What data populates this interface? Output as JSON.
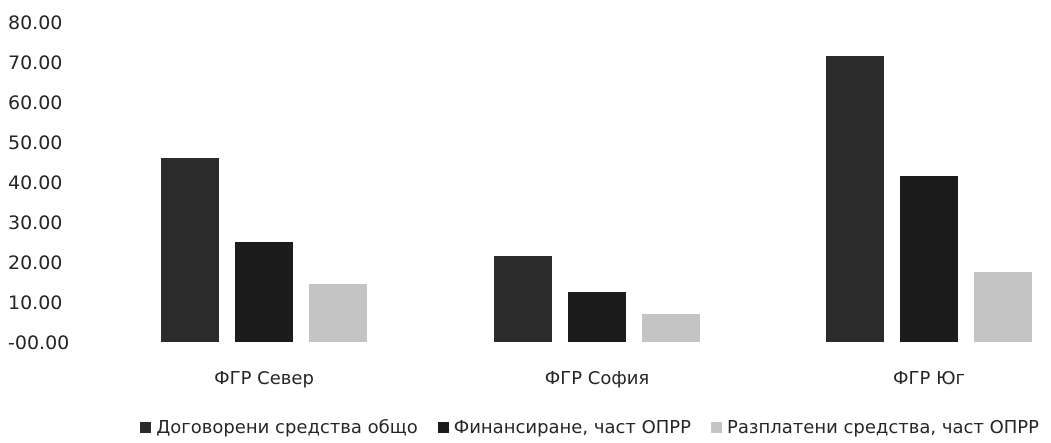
{
  "chart_data": {
    "type": "bar",
    "categories": [
      "ФГР Север",
      "ФГР София",
      "ФГР Юг"
    ],
    "series": [
      {
        "name": "Договорени средства общо",
        "values": [
          46.0,
          21.5,
          71.5
        ],
        "color": "#2b2b2b"
      },
      {
        "name": "Финансиране, част ОПРР",
        "values": [
          25.0,
          12.5,
          41.5
        ],
        "color": "#1c1c1c"
      },
      {
        "name": "Разплатени средства, част ОПРР",
        "values": [
          14.5,
          7.0,
          17.5
        ],
        "color": "#c4c4c4"
      }
    ],
    "yticks": [
      "-00.00",
      "10.00",
      "20.00",
      "30.00",
      "40.00",
      "50.00",
      "60.00",
      "70.00",
      "80.00"
    ],
    "ylim": [
      0,
      80
    ],
    "grid": false,
    "legend_position": "bottom-right"
  }
}
